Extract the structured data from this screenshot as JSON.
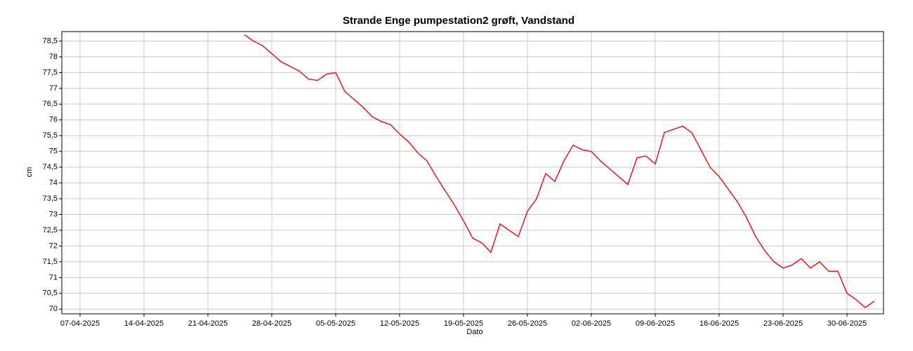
{
  "chart_data": {
    "type": "line",
    "title": "Strande Enge pumpestation2 grøft, Vandstand",
    "x_label": "Dato",
    "y_label": "cm",
    "x": [
      "2025-04-25",
      "2025-04-26",
      "2025-04-27",
      "2025-04-28",
      "2025-04-29",
      "2025-04-30",
      "2025-05-01",
      "2025-05-02",
      "2025-05-03",
      "2025-05-04",
      "2025-05-05",
      "2025-05-06",
      "2025-05-07",
      "2025-05-08",
      "2025-05-09",
      "2025-05-10",
      "2025-05-11",
      "2025-05-12",
      "2025-05-13",
      "2025-05-14",
      "2025-05-15",
      "2025-05-16",
      "2025-05-17",
      "2025-05-18",
      "2025-05-19",
      "2025-05-20",
      "2025-05-21",
      "2025-05-22",
      "2025-05-23",
      "2025-05-24",
      "2025-05-25",
      "2025-05-26",
      "2025-05-27",
      "2025-05-28",
      "2025-05-29",
      "2025-05-30",
      "2025-05-31",
      "2025-06-01",
      "2025-06-02",
      "2025-06-03",
      "2025-06-04",
      "2025-06-05",
      "2025-06-06",
      "2025-06-07",
      "2025-06-08",
      "2025-06-09",
      "2025-06-10",
      "2025-06-11",
      "2025-06-12",
      "2025-06-13",
      "2025-06-14",
      "2025-06-15",
      "2025-06-16",
      "2025-06-17",
      "2025-06-18",
      "2025-06-19",
      "2025-06-20",
      "2025-06-21",
      "2025-06-22",
      "2025-06-23",
      "2025-06-24",
      "2025-06-25",
      "2025-06-26",
      "2025-06-27",
      "2025-06-28",
      "2025-06-29",
      "2025-06-30",
      "2025-07-01",
      "2025-07-02",
      "2025-07-03"
    ],
    "series": [
      {
        "name": "Vandstand",
        "color": "#e8141c",
        "values": [
          78.7,
          78.5,
          78.35,
          78.1,
          77.85,
          77.7,
          77.55,
          77.3,
          77.25,
          77.45,
          77.5,
          76.9,
          76.65,
          76.4,
          76.1,
          75.95,
          75.85,
          75.55,
          75.3,
          74.95,
          74.7,
          74.2,
          73.75,
          73.3,
          72.8,
          72.25,
          72.1,
          71.8,
          72.7,
          72.5,
          72.3,
          73.1,
          73.5,
          74.3,
          74.05,
          74.7,
          75.2,
          75.05,
          75.0,
          74.7,
          74.45,
          74.2,
          73.95,
          74.8,
          74.85,
          74.6,
          75.6,
          75.7,
          75.8,
          75.6,
          75.05,
          74.5,
          74.2,
          73.8,
          73.4,
          72.9,
          72.3,
          71.85,
          71.5,
          71.3,
          71.4,
          71.6,
          71.3,
          71.5,
          71.2,
          71.2,
          70.5,
          70.3,
          70.05,
          70.25
        ]
      }
    ],
    "xlim": [
      "2025-04-05",
      "2025-07-04"
    ],
    "xticks": [
      {
        "value": "2025-04-07",
        "label": "07-04-2025"
      },
      {
        "value": "2025-04-14",
        "label": "14-04-2025"
      },
      {
        "value": "2025-04-21",
        "label": "21-04-2025"
      },
      {
        "value": "2025-04-28",
        "label": "28-04-2025"
      },
      {
        "value": "2025-05-05",
        "label": "05-05-2025"
      },
      {
        "value": "2025-05-12",
        "label": "12-05-2025"
      },
      {
        "value": "2025-05-19",
        "label": "19-05-2025"
      },
      {
        "value": "2025-05-26",
        "label": "26-05-2025"
      },
      {
        "value": "2025-06-02",
        "label": "02-06-2025"
      },
      {
        "value": "2025-06-09",
        "label": "09-06-2025"
      },
      {
        "value": "2025-06-16",
        "label": "16-06-2025"
      },
      {
        "value": "2025-06-23",
        "label": "23-06-2025"
      },
      {
        "value": "2025-06-30",
        "label": "30-06-2025"
      }
    ],
    "ylim": [
      69.85,
      78.8
    ],
    "yticks": [
      70,
      {
        "value": 70.5,
        "label": "70,5"
      },
      71,
      {
        "value": 71.5,
        "label": "71,5"
      },
      72,
      {
        "value": 72.5,
        "label": "72,5"
      },
      73,
      {
        "value": 73.5,
        "label": "73,5"
      },
      74,
      {
        "value": 74.5,
        "label": "74,5"
      },
      75,
      {
        "value": 75.5,
        "label": "75,5"
      },
      76,
      {
        "value": 76.5,
        "label": "76,5"
      },
      77,
      {
        "value": 77.5,
        "label": "77,5"
      },
      78,
      {
        "value": 78.5,
        "label": "78,5"
      }
    ],
    "grid": true
  }
}
